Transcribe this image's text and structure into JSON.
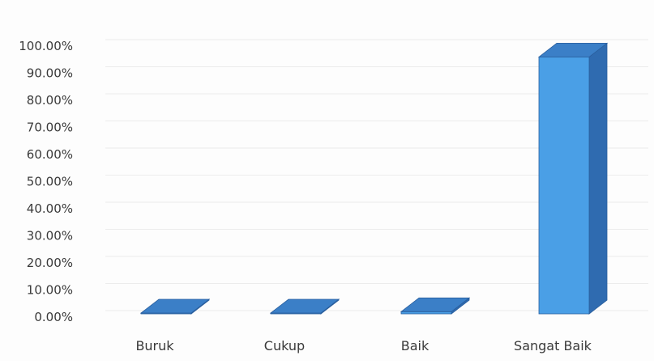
{
  "chart_data": {
    "type": "bar",
    "categories": [
      "Buruk",
      "Cukup",
      "Baik",
      "Sangat Baik"
    ],
    "values": [
      0,
      0,
      2.0,
      96.0
    ],
    "y_ticks": [
      "0.00%",
      "10.00%",
      "20.00%",
      "30.00%",
      "40.00%",
      "50.00%",
      "60.00%",
      "70.00%",
      "80.00%",
      "90.00%",
      "100.00%"
    ],
    "ylim": [
      0,
      100
    ],
    "grid": true,
    "legend": "none",
    "style": "3d-column",
    "colors": {
      "front": "#4a9fe6",
      "top": "#3b7fc7",
      "side": "#2f6bb0",
      "edge": "#2a5f9e"
    }
  }
}
